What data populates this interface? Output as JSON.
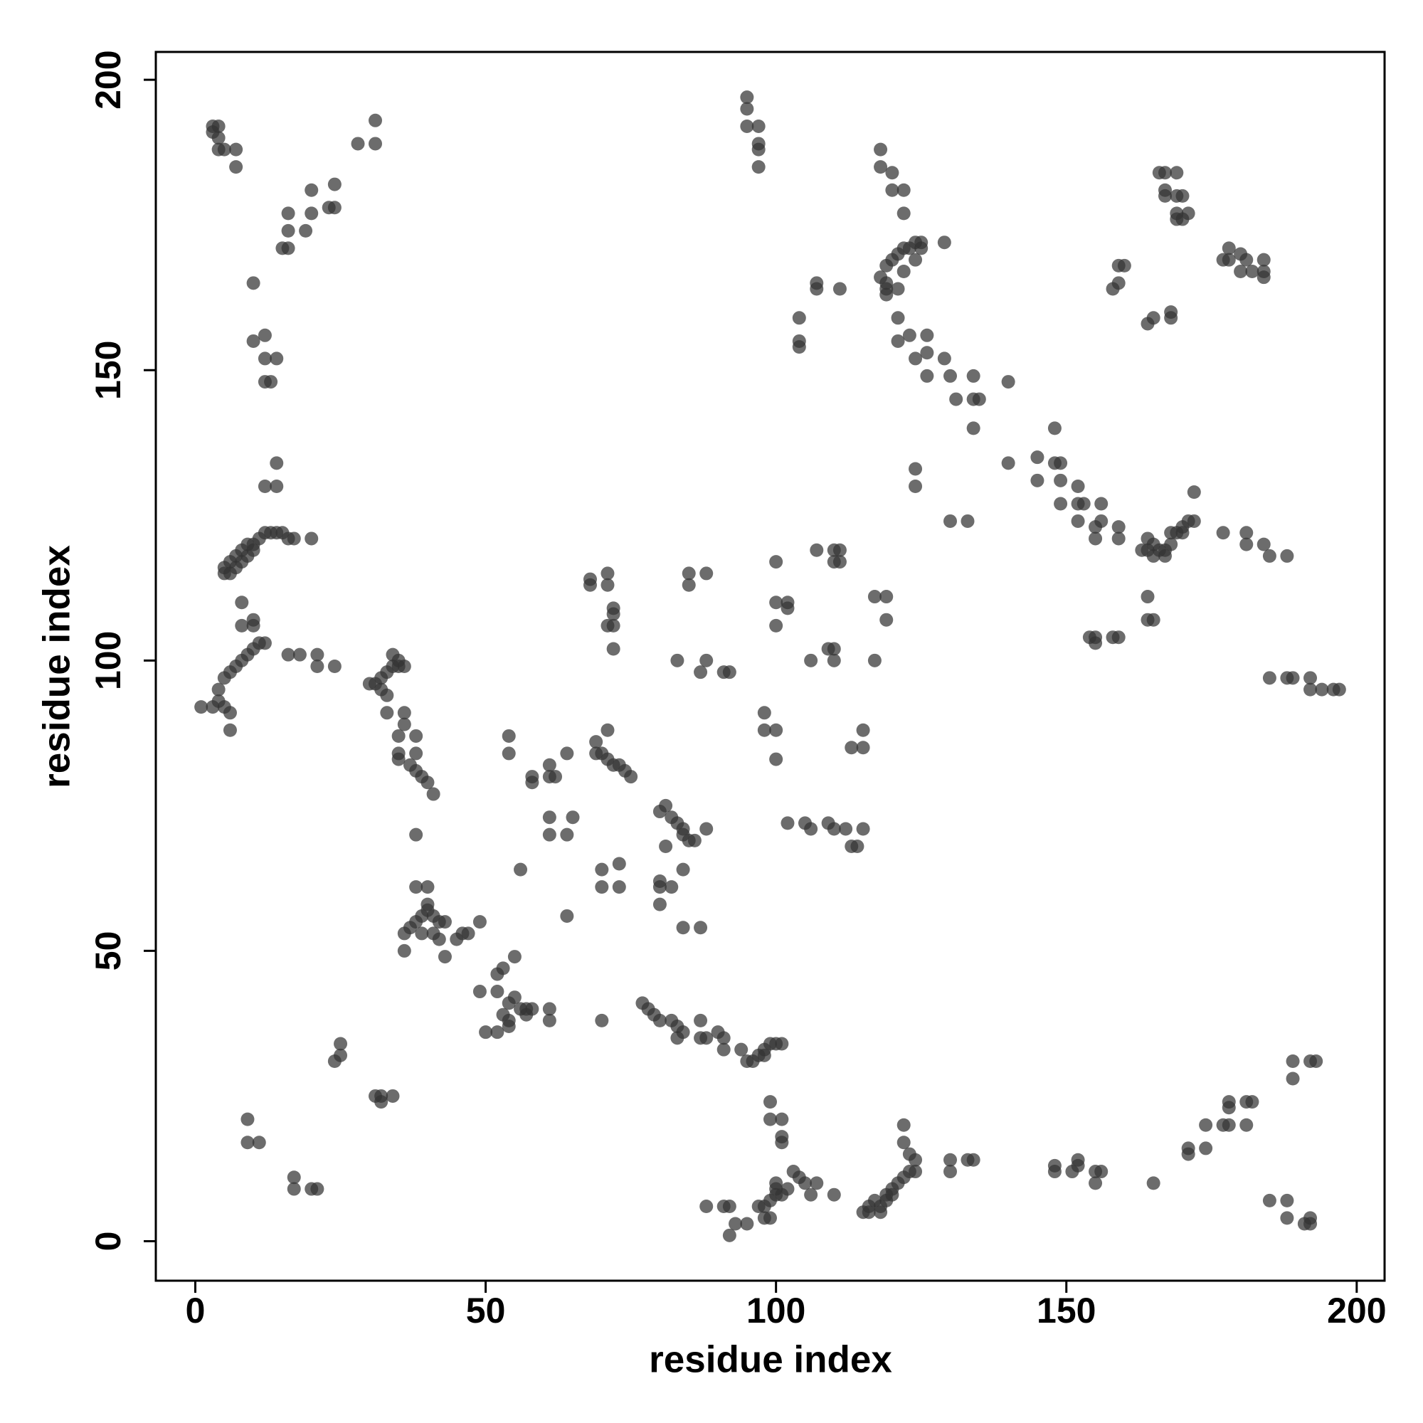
{
  "chart_data": {
    "type": "scatter",
    "xlabel": "residue index",
    "ylabel": "residue index",
    "xlim": [
      -6.8,
      204.8
    ],
    "ylim": [
      -6.8,
      204.8
    ],
    "xticks": [
      0,
      50,
      100,
      150,
      200
    ],
    "yticks": [
      0,
      50,
      100,
      150,
      200
    ],
    "color": "#333333",
    "x": [
      3,
      4,
      3,
      4,
      4,
      5,
      7,
      7,
      28,
      31,
      31,
      15,
      16,
      16,
      16,
      19,
      20,
      20,
      23,
      24,
      24,
      10,
      10,
      12,
      12,
      12,
      14,
      13,
      14,
      14,
      12,
      5,
      6,
      7,
      8,
      9,
      10,
      11,
      12,
      13,
      14,
      15,
      16,
      17,
      5,
      6,
      7,
      8,
      9,
      10,
      20,
      1,
      3,
      4,
      4,
      5,
      6,
      7,
      8,
      9,
      10,
      11,
      12,
      10,
      10,
      8,
      8,
      5,
      6,
      6,
      16,
      18,
      21,
      21,
      24,
      25,
      25,
      24,
      9,
      9,
      11,
      17,
      17,
      20,
      21,
      31,
      32,
      34,
      32,
      30,
      31,
      32,
      33,
      34,
      35,
      34,
      35,
      32,
      33,
      36,
      33,
      36,
      36,
      35,
      38,
      35,
      37,
      38,
      39,
      40,
      41,
      35,
      38,
      38,
      38,
      40,
      36,
      37,
      38,
      39,
      41,
      42,
      43,
      40,
      40,
      36,
      39,
      41,
      42,
      45,
      46,
      47,
      49,
      43,
      49,
      52,
      53,
      52,
      55,
      50,
      52,
      54,
      53,
      54,
      55,
      56,
      57,
      57,
      58,
      61,
      61,
      54,
      54,
      54,
      56,
      58,
      58,
      61,
      62,
      61,
      61,
      61,
      64,
      65,
      64,
      64,
      68,
      68,
      71,
      71,
      72,
      72,
      72,
      71,
      72,
      69,
      70,
      71,
      72,
      73,
      74,
      75,
      71,
      69,
      70,
      73,
      70,
      73,
      70,
      80,
      81,
      82,
      83,
      84,
      84,
      85,
      86,
      88,
      84,
      81,
      80,
      80,
      82,
      80,
      84,
      87,
      77,
      78,
      79,
      80,
      82,
      83,
      84,
      83,
      87,
      87,
      88,
      90,
      91,
      91,
      94,
      95,
      96,
      97,
      98,
      99,
      100,
      101,
      98,
      83,
      85,
      85,
      88,
      88,
      87,
      91,
      92,
      95,
      95,
      95,
      97,
      97,
      97,
      97,
      98,
      98,
      100,
      100,
      100,
      100,
      100,
      102,
      102,
      102,
      105,
      106,
      109,
      110,
      113,
      112,
      115,
      114,
      104,
      104,
      104,
      107,
      107,
      111,
      107,
      110,
      110,
      111,
      111,
      106,
      109,
      110,
      110,
      113,
      115,
      115,
      117,
      119,
      119,
      117,
      118,
      118,
      120,
      120,
      122,
      122,
      118,
      119,
      119,
      120,
      121,
      122,
      123,
      124,
      125,
      125,
      119,
      121,
      119,
      122,
      124,
      129,
      121,
      121,
      123,
      126,
      124,
      126,
      126,
      129,
      130,
      131,
      134,
      134,
      135,
      134,
      140,
      140,
      124,
      124,
      130,
      133,
      145,
      145,
      148,
      148,
      149,
      149,
      149,
      152,
      152,
      153,
      152,
      156,
      156,
      155,
      155,
      159,
      159,
      163,
      164,
      165,
      166,
      167,
      168,
      168,
      169,
      170,
      171,
      172,
      172,
      165,
      167,
      164,
      170,
      164,
      164,
      165,
      154,
      155,
      155,
      158,
      159,
      159,
      160,
      158,
      159,
      164,
      165,
      168,
      168,
      166,
      167,
      169,
      167,
      167,
      169,
      170,
      169,
      170,
      171,
      169,
      178,
      178,
      177,
      180,
      180,
      181,
      184,
      184,
      184,
      182,
      177,
      181,
      181,
      184,
      185,
      188,
      185,
      188,
      189,
      192,
      192,
      194,
      196,
      197,
      189,
      189,
      192,
      193,
      185,
      188,
      188,
      191,
      192,
      192,
      174,
      174,
      177,
      178,
      178,
      178,
      181,
      182,
      181,
      171,
      171,
      165,
      148,
      148,
      151,
      152,
      152,
      155,
      156,
      155,
      130,
      130,
      133,
      134,
      115,
      116,
      116,
      117,
      118,
      119,
      119,
      120,
      121,
      122,
      123,
      124,
      124,
      122,
      122,
      118,
      120,
      123,
      110,
      106,
      107,
      104,
      103,
      101,
      100,
      100,
      99,
      98,
      97,
      99,
      98,
      95,
      93,
      92,
      91,
      92,
      88,
      102,
      100,
      105,
      99,
      99,
      101,
      101,
      101
    ],
    "y": [
      192,
      192,
      191,
      190,
      188,
      188,
      188,
      185,
      189,
      193,
      189,
      171,
      171,
      177,
      174,
      174,
      181,
      177,
      178,
      182,
      178,
      165,
      155,
      156,
      152,
      148,
      152,
      148,
      134,
      130,
      130,
      116,
      117,
      118,
      119,
      120,
      120,
      121,
      122,
      122,
      122,
      122,
      121,
      121,
      115,
      115,
      116,
      117,
      118,
      119,
      121,
      92,
      92,
      93,
      95,
      97,
      98,
      99,
      100,
      101,
      102,
      103,
      103,
      106,
      107,
      110,
      106,
      92,
      91,
      88,
      101,
      101,
      101,
      99,
      99,
      32,
      34,
      31,
      21,
      17,
      17,
      11,
      9,
      9,
      9,
      25,
      25,
      25,
      24,
      96,
      96,
      97,
      98,
      99,
      100,
      101,
      99,
      95,
      94,
      99,
      91,
      91,
      89,
      87,
      87,
      83,
      82,
      81,
      80,
      79,
      77,
      84,
      84,
      70,
      61,
      61,
      53,
      54,
      55,
      56,
      56,
      55,
      55,
      58,
      57,
      50,
      53,
      53,
      52,
      52,
      53,
      53,
      55,
      49,
      43,
      46,
      47,
      43,
      49,
      36,
      36,
      37,
      39,
      41,
      42,
      40,
      39,
      40,
      40,
      40,
      38,
      38,
      87,
      84,
      64,
      80,
      79,
      82,
      80,
      80,
      73,
      70,
      70,
      73,
      84,
      56,
      113,
      114,
      115,
      113,
      109,
      108,
      106,
      106,
      102,
      86,
      84,
      83,
      82,
      82,
      81,
      80,
      88,
      84,
      64,
      65,
      61,
      61,
      38,
      74,
      75,
      73,
      72,
      71,
      70,
      69,
      69,
      71,
      64,
      68,
      62,
      61,
      61,
      58,
      54,
      54,
      41,
      40,
      39,
      38,
      38,
      37,
      36,
      35,
      38,
      35,
      35,
      36,
      35,
      33,
      33,
      31,
      31,
      32,
      33,
      34,
      34,
      34,
      32,
      100,
      115,
      113,
      115,
      100,
      98,
      98,
      98,
      197,
      195,
      192,
      192,
      189,
      188,
      185,
      91,
      88,
      88,
      83,
      117,
      110,
      106,
      110,
      109,
      72,
      72,
      71,
      72,
      71,
      68,
      71,
      71,
      68,
      159,
      155,
      154,
      164,
      165,
      164,
      119,
      119,
      117,
      117,
      119,
      100,
      102,
      100,
      102,
      85,
      85,
      88,
      111,
      111,
      107,
      100,
      188,
      185,
      184,
      181,
      181,
      177,
      166,
      165,
      168,
      169,
      170,
      171,
      171,
      172,
      172,
      171,
      164,
      164,
      163,
      167,
      169,
      172,
      159,
      155,
      156,
      156,
      152,
      153,
      149,
      152,
      149,
      145,
      149,
      145,
      145,
      140,
      148,
      134,
      133,
      130,
      124,
      124,
      135,
      131,
      140,
      134,
      134,
      131,
      127,
      130,
      127,
      127,
      124,
      127,
      124,
      123,
      121,
      123,
      121,
      119,
      121,
      120,
      119,
      119,
      120,
      122,
      122,
      123,
      124,
      124,
      129,
      118,
      118,
      119,
      122,
      111,
      107,
      107,
      104,
      103,
      104,
      104,
      104,
      168,
      168,
      164,
      165,
      158,
      159,
      160,
      159,
      184,
      184,
      184,
      181,
      180,
      180,
      180,
      177,
      176,
      177,
      176,
      171,
      169,
      169,
      170,
      167,
      169,
      169,
      166,
      167,
      167,
      122,
      122,
      120,
      120,
      118,
      118,
      97,
      97,
      97,
      97,
      95,
      95,
      95,
      95,
      31,
      28,
      31,
      31,
      7,
      7,
      4,
      3,
      3,
      4,
      20,
      16,
      20,
      20,
      24,
      23,
      24,
      24,
      20,
      16,
      15,
      10,
      13,
      12,
      12,
      13,
      14,
      12,
      12,
      10,
      14,
      12,
      14,
      14,
      5,
      6,
      5,
      7,
      6,
      8,
      7,
      9,
      10,
      11,
      12,
      14,
      12,
      17,
      20,
      5,
      8,
      15,
      8,
      8,
      10,
      11,
      12,
      8,
      9,
      8,
      7,
      6,
      6,
      4,
      4,
      3,
      3,
      1,
      6,
      6,
      6,
      9,
      10,
      10,
      24,
      21,
      21,
      18,
      17
    ]
  }
}
